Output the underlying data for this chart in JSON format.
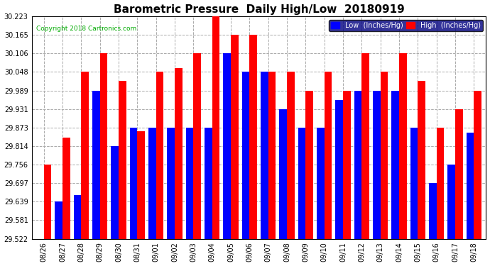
{
  "title": "Barometric Pressure  Daily High/Low  20180919",
  "copyright": "Copyright 2018 Cartronics.com",
  "legend_low": "Low  (Inches/Hg)",
  "legend_high": "High  (Inches/Hg)",
  "dates": [
    "08/26",
    "08/27",
    "08/28",
    "08/29",
    "08/30",
    "08/31",
    "09/01",
    "09/02",
    "09/03",
    "09/04",
    "09/05",
    "09/06",
    "09/07",
    "09/08",
    "09/09",
    "09/10",
    "09/11",
    "09/12",
    "09/13",
    "09/14",
    "09/15",
    "09/16",
    "09/17",
    "09/18"
  ],
  "low_values": [
    29.522,
    29.639,
    29.66,
    29.989,
    29.814,
    29.873,
    29.873,
    29.873,
    29.873,
    29.873,
    30.106,
    30.048,
    30.048,
    29.931,
    29.873,
    29.873,
    29.96,
    29.989,
    29.989,
    29.989,
    29.873,
    29.697,
    29.756,
    29.856
  ],
  "high_values": [
    29.756,
    29.84,
    30.048,
    30.106,
    30.02,
    29.86,
    30.048,
    30.06,
    30.106,
    30.223,
    30.165,
    30.165,
    30.048,
    30.048,
    29.989,
    30.048,
    29.989,
    30.106,
    30.048,
    30.106,
    30.02,
    29.873,
    29.931,
    29.989
  ],
  "ylim_min": 29.522,
  "ylim_max": 30.223,
  "yticks": [
    29.522,
    29.581,
    29.639,
    29.697,
    29.756,
    29.814,
    29.873,
    29.931,
    29.989,
    30.048,
    30.106,
    30.165,
    30.223
  ],
  "color_low": "#0000ff",
  "color_high": "#ff0000",
  "bg_color": "#ffffff",
  "grid_color": "#aaaaaa",
  "title_fontsize": 11,
  "tick_fontsize": 7,
  "bar_width": 0.4,
  "legend_bg": "#000080",
  "copyright_color": "#00aa00"
}
